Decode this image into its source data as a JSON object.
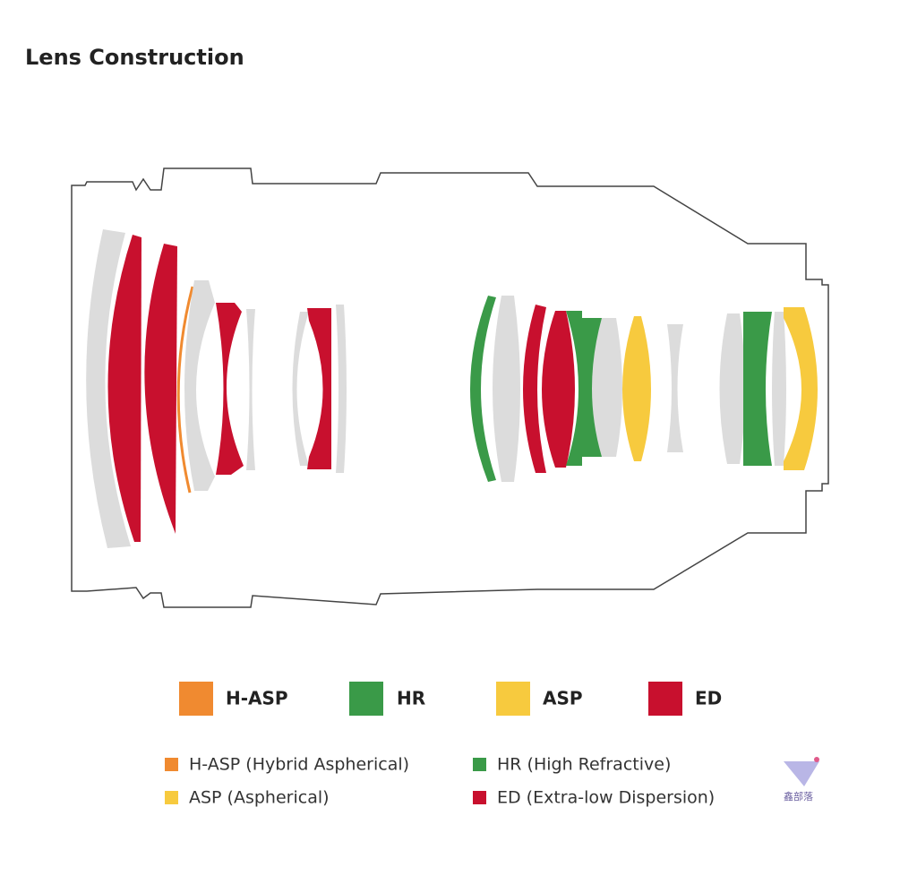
{
  "title": "Lens Construction",
  "legend": [
    "H-ASP",
    "HR",
    "ASP",
    "ED"
  ],
  "descriptions": [
    "H-ASP (Hybrid Aspherical)",
    "HR (High Refractive)",
    "ASP (Aspherical)",
    "ED (Extra-low Dispersion)"
  ],
  "watermark": "鑫部落"
}
